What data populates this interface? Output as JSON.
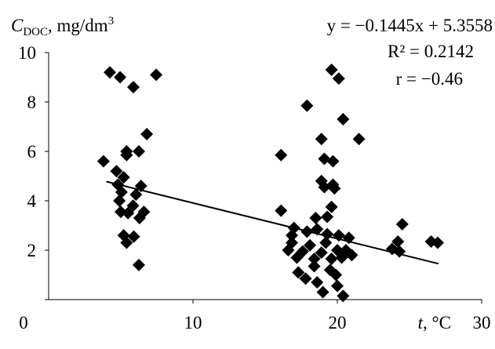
{
  "chart_data": {
    "type": "scatter",
    "ylabel": {
      "symbol": "C",
      "subscript": "DOC",
      "unit": ", mg/dm",
      "superscript": "3"
    },
    "xlabel": {
      "symbol": "t",
      "unit": ", °C"
    },
    "annotations": [
      "y = −0.1445x + 5.3558",
      "R² = 0.2142",
      "r = −0.46"
    ],
    "color": "#000000",
    "x": [
      4.24,
      4.95,
      5.87,
      7.45,
      6.8,
      3.8,
      5.4,
      5.4,
      6.25,
      4.7,
      5.2,
      4.8,
      5.05,
      6.4,
      6.05,
      4.9,
      5.85,
      5.0,
      5.5,
      6.6,
      6.3,
      5.2,
      5.9,
      5.4,
      6.25,
      16.1,
      16.1,
      17.9,
      19.6,
      20.1,
      20.4,
      21.5,
      18.9,
      19.1,
      19.7,
      18.9,
      19.1,
      19.7,
      19.8,
      19.6,
      19.3,
      18.5,
      17.0,
      16.85,
      17.9,
      18.6,
      19.3,
      20.1,
      20.8,
      16.6,
      17.2,
      17.6,
      18.1,
      18.4,
      18.9,
      19.2,
      19.6,
      20.0,
      20.3,
      20.6,
      19.5,
      17.3,
      17.8,
      18.6,
      19.0,
      20.0,
      20.4,
      19.9,
      18.4,
      16.85,
      21.0,
      24.5,
      23.8,
      24.3,
      24.2,
      26.5,
      26.95
    ],
    "values": [
      9.2,
      9.0,
      8.6,
      9.1,
      6.7,
      5.6,
      6.0,
      5.85,
      6.0,
      5.2,
      4.95,
      4.65,
      4.35,
      4.6,
      4.25,
      4.0,
      3.8,
      3.55,
      3.5,
      3.55,
      3.3,
      2.6,
      2.55,
      2.3,
      1.4,
      5.85,
      3.6,
      7.85,
      9.3,
      8.95,
      7.3,
      6.5,
      6.5,
      5.7,
      5.6,
      4.8,
      4.55,
      4.65,
      4.5,
      3.75,
      3.35,
      3.3,
      2.9,
      2.6,
      2.75,
      2.85,
      2.65,
      2.6,
      2.5,
      2.0,
      1.7,
      1.95,
      2.2,
      1.65,
      1.9,
      2.3,
      1.65,
      2.0,
      1.7,
      2.0,
      1.2,
      1.1,
      0.85,
      0.7,
      0.3,
      0.55,
      0.15,
      1.0,
      1.35,
      2.3,
      1.8,
      3.05,
      2.05,
      1.95,
      2.35,
      2.35,
      2.3
    ],
    "trendline": {
      "slope": -0.1445,
      "intercept": 5.3558,
      "x_range": [
        4.0,
        27.0
      ]
    },
    "xlim": [
      0,
      30
    ],
    "xticks": [
      10,
      20,
      30
    ],
    "ylim": [
      0,
      10
    ],
    "yticks": [
      0,
      2,
      4,
      6,
      8,
      10
    ],
    "grid": false
  }
}
